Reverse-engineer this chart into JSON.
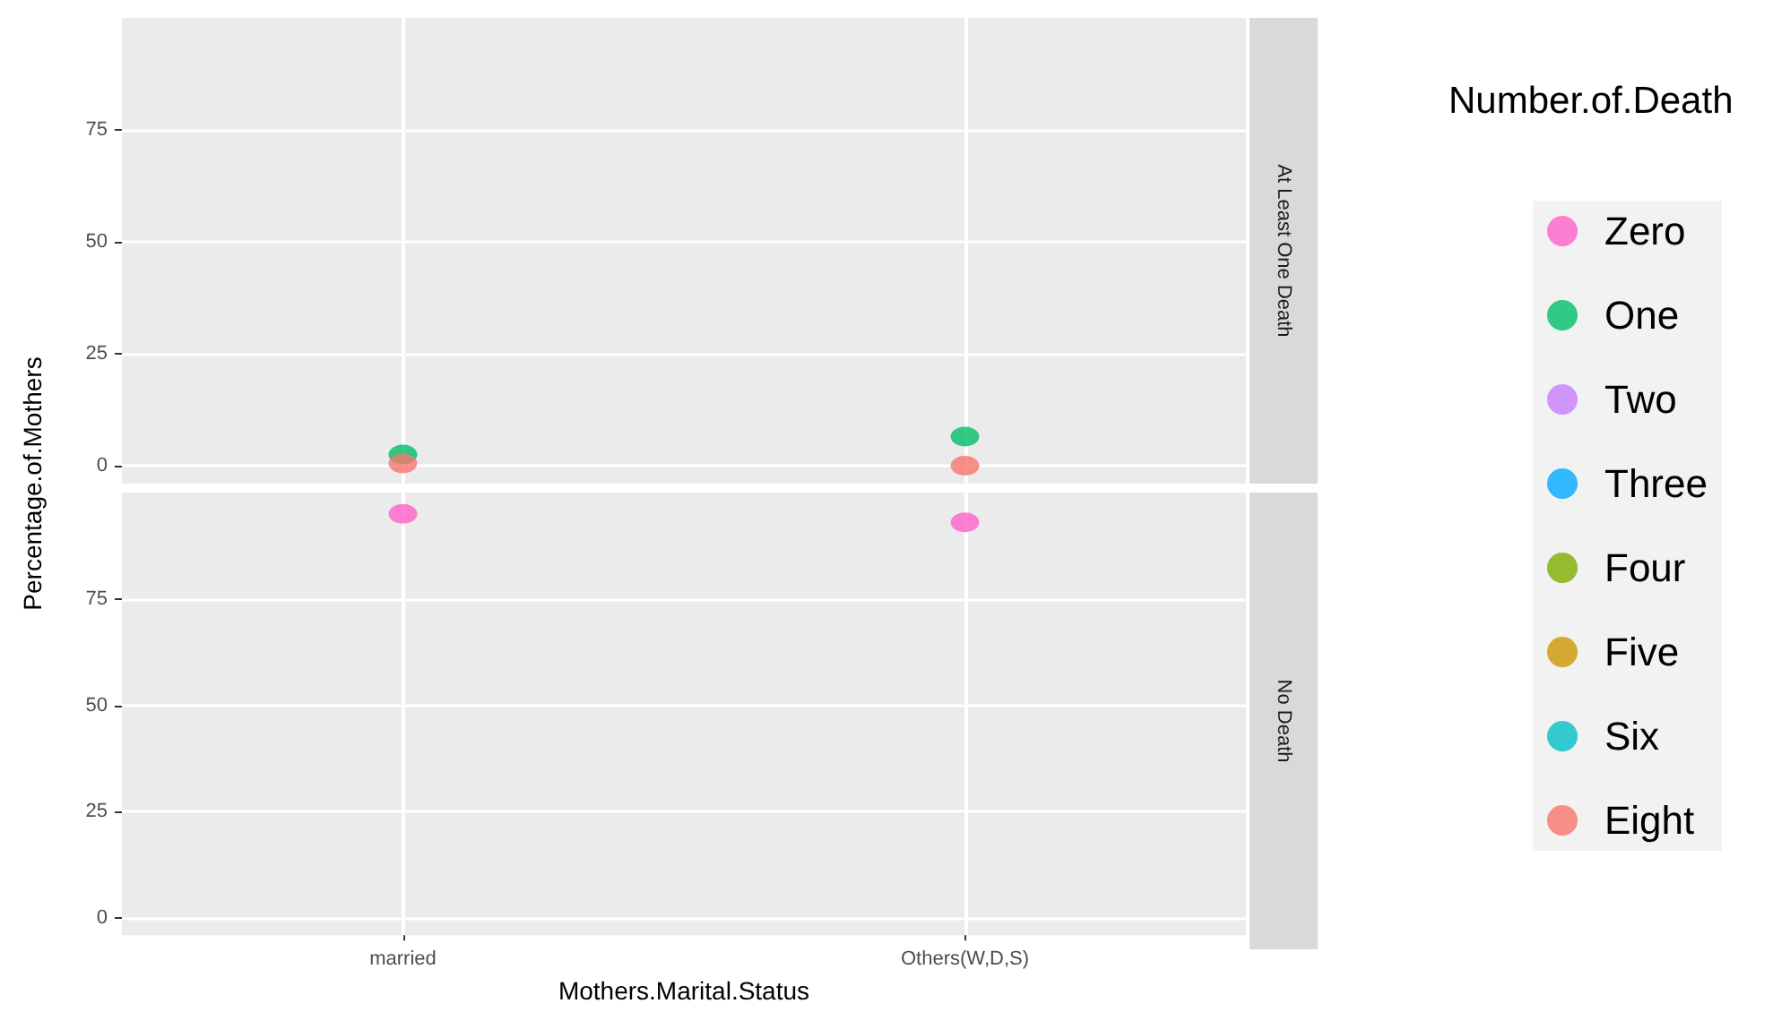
{
  "chart_data": [
    {
      "type": "scatter",
      "ylabel": "Percentage.of.Mothers",
      "legend_title": "Number.of.Death",
      "annotations": [
        "At Least One Death"
      ],
      "categories": [
        null,
        null
      ],
      "ylim": [
        -4,
        100
      ],
      "yticks": [
        0,
        25,
        50,
        75
      ],
      "grid": true,
      "legend": "right",
      "marker": "circle",
      "tick_labels": "y",
      "series": [
        {
          "name": "Zero",
          "color": "#ff61cc",
          "values": [
            null,
            null
          ]
        },
        {
          "name": "One",
          "color": "#00be67",
          "values": [
            2.5,
            6.5
          ]
        },
        {
          "name": "Two",
          "color": "#c77cff",
          "values": [
            null,
            null
          ]
        },
        {
          "name": "Three",
          "color": "#00a9ff",
          "values": [
            null,
            null
          ]
        },
        {
          "name": "Four",
          "color": "#7cae00",
          "values": [
            null,
            null
          ]
        },
        {
          "name": "Five",
          "color": "#cd9600",
          "values": [
            null,
            null
          ]
        },
        {
          "name": "Six",
          "color": "#00bfc4",
          "values": [
            null,
            null
          ]
        },
        {
          "name": "Eight",
          "color": "#f8766d",
          "values": [
            0.5,
            0
          ]
        }
      ]
    },
    {
      "type": "scatter",
      "xlabel": "Mothers.Marital.Status",
      "annotations": [
        "No Death"
      ],
      "categories": [
        "married",
        "Others(W,D,S)"
      ],
      "ylim": [
        -4,
        100
      ],
      "yticks": [
        0,
        25,
        50,
        75
      ],
      "grid": true,
      "marker": "circle",
      "series": [
        {
          "color": "#ff61cc",
          "values": [
            95,
            93
          ]
        }
      ]
    }
  ]
}
